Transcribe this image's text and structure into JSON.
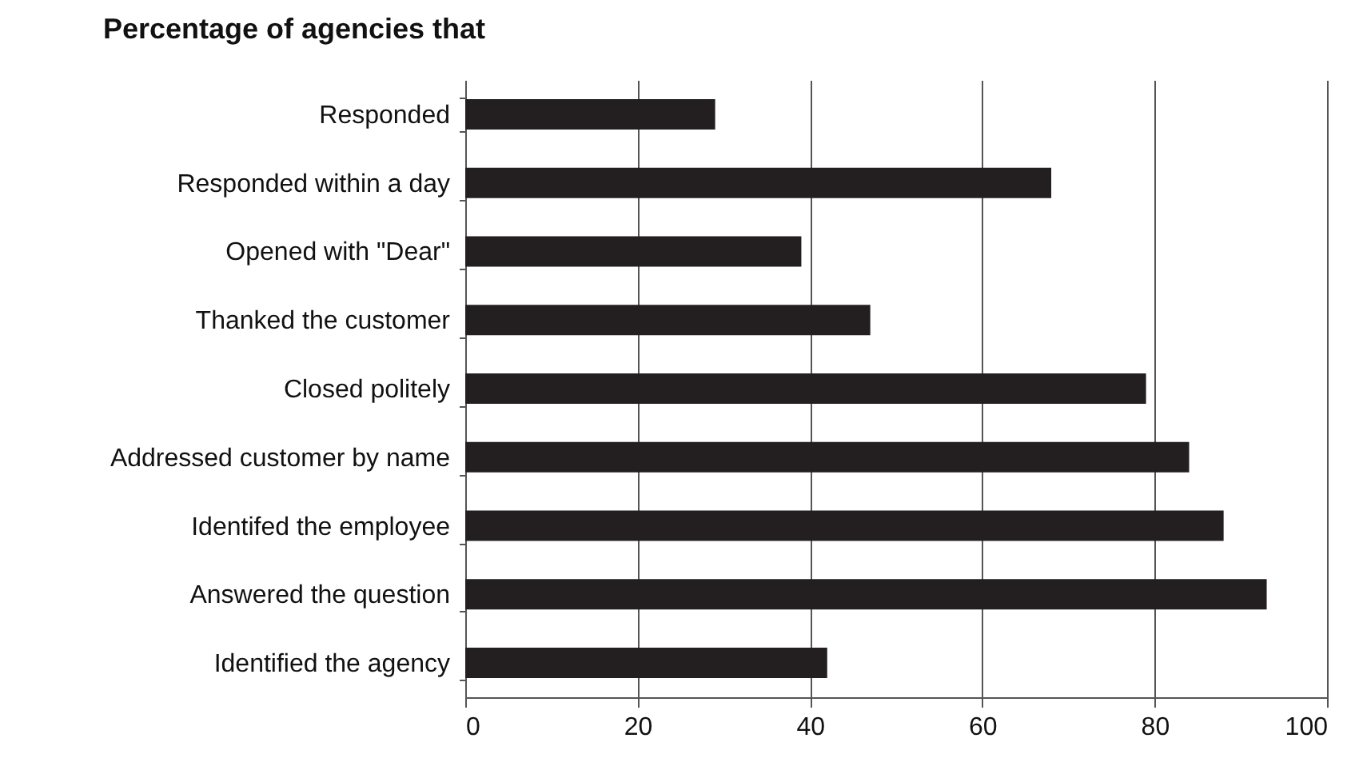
{
  "chart_data": {
    "type": "bar",
    "orientation": "horizontal",
    "title": "Percentage of agencies that",
    "categories": [
      "Responded",
      "Responded within a day",
      "Opened with \"Dear\"",
      "Thanked the customer",
      "Closed politely",
      "Addressed customer by name",
      "Identifed the employee",
      "Answered the question",
      "Identified the agency"
    ],
    "values": [
      29,
      68,
      39,
      47,
      79,
      84,
      88,
      93,
      42
    ],
    "color": "#231f20",
    "xlim": [
      0,
      100
    ],
    "xticks": [
      0,
      20,
      40,
      60,
      80,
      100
    ],
    "grid": "x"
  }
}
